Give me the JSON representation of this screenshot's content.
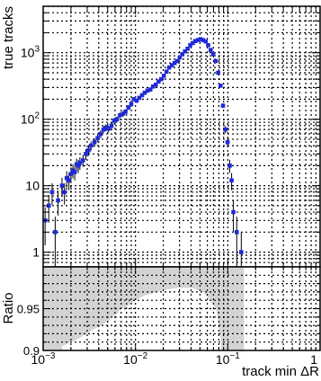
{
  "chart_data": [
    {
      "type": "scatter",
      "panel": "main",
      "xlabel": "track min ΔR",
      "ylabel": "true tracks",
      "xscale": "log",
      "yscale": "log",
      "xlim": [
        0.001,
        1
      ],
      "ylim": [
        0.6,
        5000
      ],
      "grid": true,
      "marker_color": "#1f2bd8",
      "x_ticks": [
        {
          "value": 0.001,
          "base": "10",
          "exp": "−3"
        },
        {
          "value": 0.01,
          "base": "10",
          "exp": "−2"
        },
        {
          "value": 0.1,
          "base": "10",
          "exp": "−1"
        },
        {
          "value": 1,
          "base": "1",
          "exp": ""
        }
      ],
      "y_ticks": [
        {
          "value": 1,
          "base": "1",
          "exp": ""
        },
        {
          "value": 10,
          "base": "10",
          "exp": ""
        },
        {
          "value": 100,
          "base": "10",
          "exp": "2"
        },
        {
          "value": 1000,
          "base": "10",
          "exp": "3"
        }
      ],
      "series": [
        {
          "x": [
            0.00105,
            0.00115,
            0.00125,
            0.00135,
            0.00145,
            0.0016,
            0.0017,
            0.0018,
            0.0019,
            0.002,
            0.0021,
            0.0022,
            0.0023,
            0.0024,
            0.0025,
            0.0027,
            0.0029,
            0.0031,
            0.0033,
            0.0036,
            0.0039,
            0.0042,
            0.0045,
            0.0048,
            0.0051,
            0.0055,
            0.0059,
            0.0063,
            0.0068,
            0.0073,
            0.0078,
            0.0084,
            0.009,
            0.0096,
            0.0103,
            0.011,
            0.0118,
            0.0126,
            0.0135,
            0.0145,
            0.0155,
            0.0166,
            0.0178,
            0.019,
            0.0203,
            0.0217,
            0.0232,
            0.0248,
            0.0265,
            0.0283,
            0.0302,
            0.0322,
            0.0344,
            0.0367,
            0.0392,
            0.0418,
            0.0446,
            0.0476,
            0.0507,
            0.054,
            0.0576,
            0.0613,
            0.0653,
            0.0695,
            0.0739,
            0.0786,
            0.0835,
            0.0887,
            0.094,
            0.0995,
            0.105,
            0.11,
            0.115,
            0.125,
            0.14
          ],
          "y": [
            3,
            5,
            8,
            2,
            6,
            10,
            8,
            13,
            12,
            15,
            17,
            16,
            21,
            20,
            22,
            24,
            30,
            34,
            40,
            45,
            52,
            60,
            70,
            75,
            72,
            80,
            95,
            100,
            115,
            120,
            130,
            150,
            170,
            200,
            190,
            210,
            230,
            250,
            270,
            280,
            310,
            330,
            370,
            400,
            450,
            520,
            600,
            650,
            700,
            750,
            850,
            950,
            1050,
            1150,
            1300,
            1400,
            1500,
            1550,
            1600,
            1550,
            1480,
            1300,
            1100,
            950,
            750,
            500,
            320,
            160,
            70,
            45,
            20,
            12,
            4,
            2,
            1
          ]
        }
      ]
    },
    {
      "type": "area",
      "panel": "ratio",
      "xlabel": "track min ΔR",
      "ylabel": "Ratio",
      "xscale": "log",
      "xlim": [
        0.001,
        1
      ],
      "ylim": [
        0.9,
        1.0
      ],
      "grid": true,
      "band_color": "#d3d3d3",
      "y_ticks": [
        {
          "value": 0.9,
          "label": "0.9"
        },
        {
          "value": 0.95,
          "label": "0.95"
        }
      ],
      "band": {
        "x": [
          0.001,
          0.0016,
          0.0016,
          0.0025,
          0.0035,
          0.005,
          0.0065,
          0.0068,
          0.008,
          0.0085,
          0.012,
          0.02,
          0.028,
          0.04,
          0.055,
          0.075,
          0.085,
          0.085,
          0.15
        ],
        "lower": [
          0.9,
          0.9,
          0.905,
          0.915,
          0.925,
          0.935,
          0.945,
          0.95,
          0.952,
          0.955,
          0.965,
          0.972,
          0.975,
          0.975,
          0.97,
          0.95,
          0.91,
          0.9,
          0.9
        ],
        "upper": [
          1.0,
          1.0,
          1.0,
          1.0,
          1.0,
          1.0,
          1.0,
          1.0,
          1.0,
          1.0,
          1.0,
          1.0,
          1.0,
          1.0,
          1.0,
          1.0,
          1.0,
          1.0,
          1.0
        ]
      }
    }
  ]
}
